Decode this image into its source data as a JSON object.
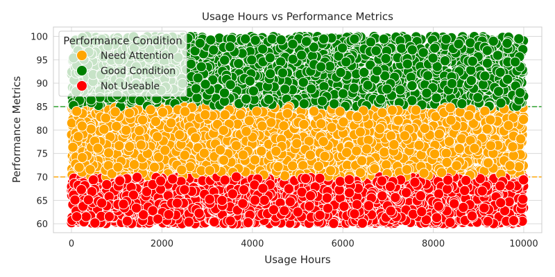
{
  "chart_data": {
    "type": "scatter",
    "title": "Usage Hours vs Performance Metrics",
    "xlabel": "Usage Hours",
    "ylabel": "Performance Metrics",
    "xlim": [
      -400,
      10400
    ],
    "ylim": [
      58.1,
      102.0
    ],
    "xticks": [
      0,
      2000,
      4000,
      6000,
      8000,
      10000
    ],
    "yticks": [
      60,
      65,
      70,
      75,
      80,
      85,
      90,
      95,
      100
    ],
    "grid": true,
    "legend": {
      "title": "Performance Condition",
      "position": "top-left",
      "entries": [
        {
          "label": "Need Attention",
          "color": "#ffa500"
        },
        {
          "label": "Good Condition",
          "color": "#008000"
        },
        {
          "label": "Not Useable",
          "color": "#ff0000"
        }
      ]
    },
    "reference_lines": [
      {
        "axis": "y",
        "value": 85,
        "color": "#2ca02c",
        "style": "dashed"
      },
      {
        "axis": "y",
        "value": 70,
        "color": "#ffa500",
        "style": "dashed"
      }
    ],
    "series": [
      {
        "name": "Good Condition",
        "color": "#008000",
        "x_range": [
          0,
          10000
        ],
        "y_range": [
          85,
          100
        ]
      },
      {
        "name": "Need Attention",
        "color": "#ffa500",
        "x_range": [
          0,
          10000
        ],
        "y_range": [
          70,
          85
        ]
      },
      {
        "name": "Not Useable",
        "color": "#ff0000",
        "x_range": [
          0,
          10000
        ],
        "y_range": [
          60,
          70
        ]
      }
    ]
  }
}
